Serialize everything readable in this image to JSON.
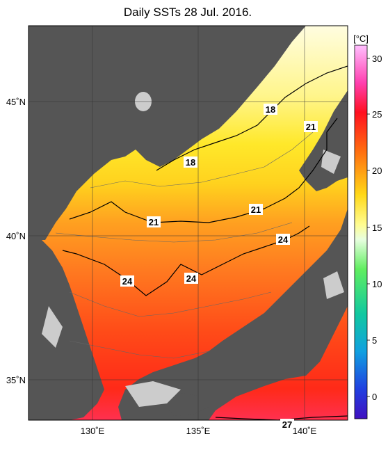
{
  "title": "Daily SSTs 28 Jul. 2016.",
  "colorbar": {
    "unit": "[°C]",
    "ticks": [
      "30",
      "25",
      "20",
      "15",
      "10",
      "5",
      "0"
    ]
  },
  "lat_labels": [
    "45˚N",
    "40˚N",
    "35˚N"
  ],
  "lon_labels": [
    "130˚E",
    "135˚E",
    "140˚E"
  ],
  "contour_labels": [
    "18",
    "18",
    "21",
    "21",
    "21",
    "24",
    "24",
    "24",
    "27"
  ],
  "colors": {
    "land": "#555555",
    "ice_gray": "#cccccc",
    "sst_cold": "#ffffcc",
    "sst_warm": "#ff2a1a"
  }
}
